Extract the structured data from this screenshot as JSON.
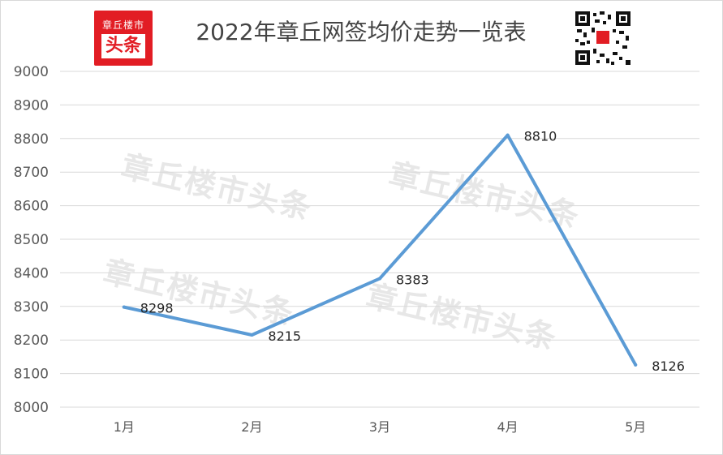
{
  "header": {
    "title": "2022年章丘网签均价走势一览表",
    "logo_top": "章丘楼市",
    "logo_bottom": "头条"
  },
  "watermarks": [
    "章丘楼市头条",
    "章丘楼市头条",
    "章丘楼市头条",
    "章丘楼市头条"
  ],
  "colors": {
    "line": "#5b9bd5",
    "grid": "#d9d9d9",
    "logo": "#e21d24"
  },
  "chart_data": {
    "type": "line",
    "title": "2022年章丘网签均价走势一览表",
    "categories": [
      "1月",
      "2月",
      "3月",
      "4月",
      "5月"
    ],
    "series": [
      {
        "values": [
          8298,
          8215,
          8383,
          8810,
          8126
        ]
      }
    ],
    "ylim": [
      8000,
      9000
    ],
    "yticks": [
      "9000",
      "8900",
      "8800",
      "8700",
      "8600",
      "8500",
      "8400",
      "8300",
      "8200",
      "8100",
      "8000"
    ],
    "grid": true,
    "data_labels": [
      "8298",
      "8215",
      "8383",
      "8810",
      "8126"
    ]
  }
}
